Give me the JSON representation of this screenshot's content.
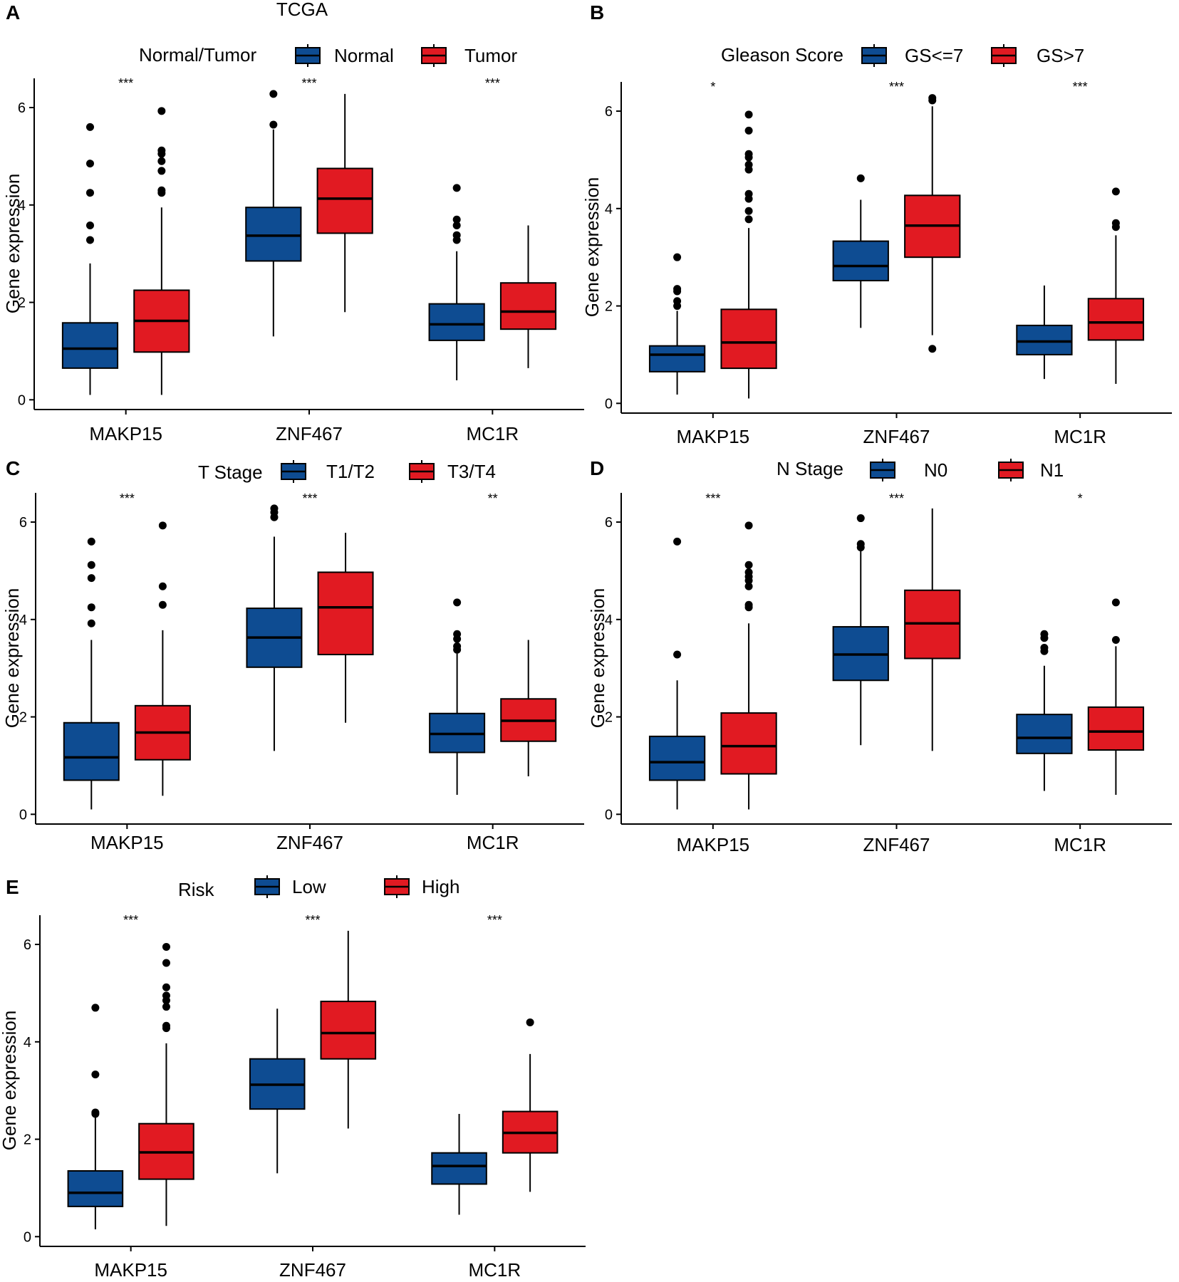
{
  "colors": {
    "group1": "#0e4c92",
    "group2": "#e11a22",
    "stroke": "#000000"
  },
  "chart_data": [
    {
      "letter": "A",
      "type": "box",
      "title": "TCGA",
      "legend_title": "Normal/Tumor",
      "groups": [
        "Normal",
        "Tumor"
      ],
      "ylabel": "Gene expression",
      "xlabel": "",
      "ylim": [
        -0.2,
        6.6
      ],
      "yticks": [
        0,
        2,
        4,
        6
      ],
      "categories": [
        "MAKP15",
        "ZNF467",
        "MC1R"
      ],
      "significance": [
        "***",
        "***",
        "***"
      ],
      "series": [
        {
          "name": "Normal",
          "boxes": [
            {
              "min": 0.1,
              "q1": 0.65,
              "median": 1.05,
              "q3": 1.58,
              "max": 2.8,
              "outliers": [
                3.28,
                3.58,
                4.25,
                4.85,
                5.6
              ]
            },
            {
              "min": 1.3,
              "q1": 2.85,
              "median": 3.37,
              "q3": 3.95,
              "max": 5.55,
              "outliers": [
                5.65,
                6.28
              ]
            },
            {
              "min": 0.4,
              "q1": 1.22,
              "median": 1.55,
              "q3": 1.97,
              "max": 3.05,
              "outliers": [
                3.28,
                3.38,
                3.58,
                3.7,
                4.35
              ]
            }
          ]
        },
        {
          "name": "Tumor",
          "boxes": [
            {
              "min": 0.1,
              "q1": 0.98,
              "median": 1.62,
              "q3": 2.25,
              "max": 3.95,
              "outliers": [
                4.25,
                4.3,
                4.7,
                4.9,
                5.05,
                5.12,
                5.93
              ]
            },
            {
              "min": 1.8,
              "q1": 3.42,
              "median": 4.13,
              "q3": 4.75,
              "max": 6.28,
              "outliers": []
            },
            {
              "min": 0.65,
              "q1": 1.45,
              "median": 1.81,
              "q3": 2.4,
              "max": 3.58,
              "outliers": []
            }
          ]
        }
      ]
    },
    {
      "letter": "B",
      "type": "box",
      "title": "",
      "legend_title": "Gleason Score",
      "groups": [
        "GS<=7",
        "GS>7"
      ],
      "ylabel": "Gene expression",
      "xlabel": "",
      "ylim": [
        -0.2,
        6.6
      ],
      "yticks": [
        0,
        2,
        4,
        6
      ],
      "categories": [
        "MAKP15",
        "ZNF467",
        "MC1R"
      ],
      "significance": [
        "*",
        "***",
        "***"
      ],
      "series": [
        {
          "name": "GS<=7",
          "boxes": [
            {
              "min": 0.18,
              "q1": 0.65,
              "median": 1.0,
              "q3": 1.18,
              "max": 1.9,
              "outliers": [
                2.0,
                2.1,
                2.3,
                2.35,
                3.0
              ]
            },
            {
              "min": 1.55,
              "q1": 2.52,
              "median": 2.82,
              "q3": 3.33,
              "max": 4.18,
              "outliers": [
                4.62
              ]
            },
            {
              "min": 0.5,
              "q1": 1.0,
              "median": 1.27,
              "q3": 1.6,
              "max": 2.42,
              "outliers": []
            }
          ]
        },
        {
          "name": "GS>7",
          "boxes": [
            {
              "min": 0.1,
              "q1": 0.72,
              "median": 1.25,
              "q3": 1.93,
              "max": 3.6,
              "outliers": [
                3.78,
                3.95,
                4.2,
                4.3,
                4.8,
                4.9,
                5.05,
                5.12,
                5.6,
                5.93
              ]
            },
            {
              "min": 1.4,
              "q1": 3.0,
              "median": 3.65,
              "q3": 4.27,
              "max": 6.1,
              "outliers": [
                1.12,
                6.22,
                6.27
              ]
            },
            {
              "min": 0.4,
              "q1": 1.3,
              "median": 1.66,
              "q3": 2.15,
              "max": 3.45,
              "outliers": [
                3.62,
                3.7,
                4.35
              ]
            }
          ]
        }
      ]
    },
    {
      "letter": "C",
      "type": "box",
      "title": "",
      "legend_title": "T Stage",
      "groups": [
        "T1/T2",
        "T3/T4"
      ],
      "ylabel": "Gene expression",
      "xlabel": "",
      "ylim": [
        -0.2,
        6.6
      ],
      "yticks": [
        0,
        2,
        4,
        6
      ],
      "categories": [
        "MAKP15",
        "ZNF467",
        "MC1R"
      ],
      "significance": [
        "***",
        "***",
        "**"
      ],
      "series": [
        {
          "name": "T1/T2",
          "boxes": [
            {
              "min": 0.1,
              "q1": 0.7,
              "median": 1.17,
              "q3": 1.88,
              "max": 3.58,
              "outliers": [
                3.92,
                4.25,
                4.85,
                5.12,
                5.6
              ]
            },
            {
              "min": 1.3,
              "q1": 3.02,
              "median": 3.63,
              "q3": 4.23,
              "max": 5.7,
              "outliers": [
                6.1,
                6.2,
                6.28
              ]
            },
            {
              "min": 0.4,
              "q1": 1.27,
              "median": 1.65,
              "q3": 2.07,
              "max": 3.3,
              "outliers": [
                3.38,
                3.45,
                3.6,
                3.7,
                4.35
              ]
            }
          ]
        },
        {
          "name": "T3/T4",
          "boxes": [
            {
              "min": 0.38,
              "q1": 1.12,
              "median": 1.68,
              "q3": 2.23,
              "max": 3.78,
              "outliers": [
                4.3,
                4.68,
                5.93
              ]
            },
            {
              "min": 1.88,
              "q1": 3.28,
              "median": 4.25,
              "q3": 4.97,
              "max": 5.78,
              "outliers": []
            },
            {
              "min": 0.78,
              "q1": 1.5,
              "median": 1.92,
              "q3": 2.37,
              "max": 3.58,
              "outliers": []
            }
          ]
        }
      ]
    },
    {
      "letter": "D",
      "type": "box",
      "title": "",
      "legend_title": "N Stage",
      "groups": [
        "N0",
        "N1"
      ],
      "ylabel": "Gene expression",
      "xlabel": "",
      "ylim": [
        -0.2,
        6.6
      ],
      "yticks": [
        0,
        2,
        4,
        6
      ],
      "categories": [
        "MAKP15",
        "ZNF467",
        "MC1R"
      ],
      "significance": [
        "***",
        "***",
        "*"
      ],
      "series": [
        {
          "name": "N0",
          "boxes": [
            {
              "min": 0.1,
              "q1": 0.7,
              "median": 1.07,
              "q3": 1.6,
              "max": 2.75,
              "outliers": [
                3.28,
                5.6
              ]
            },
            {
              "min": 1.42,
              "q1": 2.75,
              "median": 3.28,
              "q3": 3.85,
              "max": 5.4,
              "outliers": [
                5.48,
                5.55,
                6.08
              ]
            },
            {
              "min": 0.48,
              "q1": 1.25,
              "median": 1.57,
              "q3": 2.05,
              "max": 3.05,
              "outliers": [
                3.35,
                3.42,
                3.62,
                3.7
              ]
            }
          ]
        },
        {
          "name": "N1",
          "boxes": [
            {
              "min": 0.1,
              "q1": 0.83,
              "median": 1.4,
              "q3": 2.08,
              "max": 3.92,
              "outliers": [
                4.25,
                4.3,
                4.68,
                4.8,
                4.88,
                4.97,
                5.12,
                5.93
              ]
            },
            {
              "min": 1.3,
              "q1": 3.2,
              "median": 3.92,
              "q3": 4.6,
              "max": 6.28,
              "outliers": []
            },
            {
              "min": 0.4,
              "q1": 1.32,
              "median": 1.7,
              "q3": 2.2,
              "max": 3.45,
              "outliers": [
                3.58,
                4.35
              ]
            }
          ]
        }
      ]
    },
    {
      "letter": "E",
      "type": "box",
      "title": "",
      "legend_title": "Risk",
      "groups": [
        "Low",
        "High"
      ],
      "ylabel": "Gene expression",
      "xlabel": "",
      "ylim": [
        -0.2,
        6.6
      ],
      "yticks": [
        0,
        2,
        4,
        6
      ],
      "categories": [
        "MAKP15",
        "ZNF467",
        "MC1R"
      ],
      "significance": [
        "***",
        "***",
        "***"
      ],
      "series": [
        {
          "name": "Low",
          "boxes": [
            {
              "min": 0.15,
              "q1": 0.62,
              "median": 0.9,
              "q3": 1.35,
              "max": 2.45,
              "outliers": [
                2.52,
                2.55,
                3.33,
                4.7
              ]
            },
            {
              "min": 1.3,
              "q1": 2.62,
              "median": 3.12,
              "q3": 3.65,
              "max": 4.68,
              "outliers": []
            },
            {
              "min": 0.45,
              "q1": 1.08,
              "median": 1.45,
              "q3": 1.72,
              "max": 2.52,
              "outliers": []
            }
          ]
        },
        {
          "name": "High",
          "boxes": [
            {
              "min": 0.22,
              "q1": 1.18,
              "median": 1.73,
              "q3": 2.32,
              "max": 3.97,
              "outliers": [
                4.28,
                4.33,
                4.72,
                4.85,
                4.95,
                5.12,
                5.62,
                5.95
              ]
            },
            {
              "min": 2.22,
              "q1": 3.65,
              "median": 4.18,
              "q3": 4.83,
              "max": 6.28,
              "outliers": []
            },
            {
              "min": 0.92,
              "q1": 1.72,
              "median": 2.13,
              "q3": 2.57,
              "max": 3.75,
              "outliers": [
                4.4
              ]
            }
          ]
        }
      ]
    }
  ]
}
